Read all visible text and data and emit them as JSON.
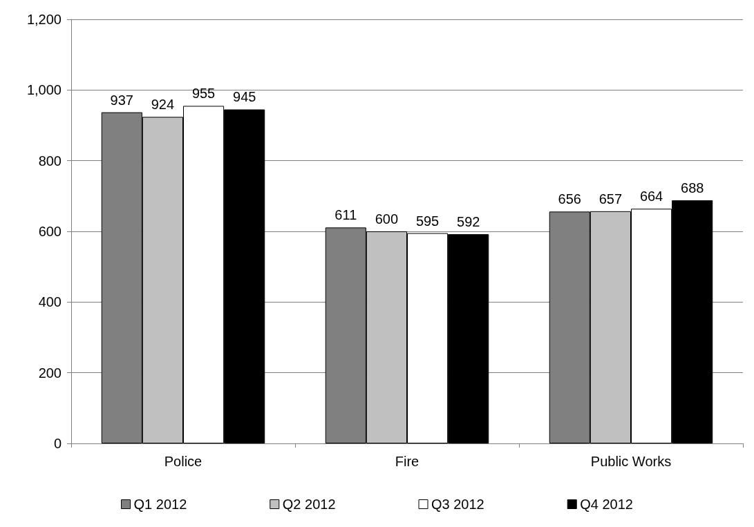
{
  "chart_data": {
    "type": "bar",
    "categories": [
      "Police",
      "Fire",
      "Public Works"
    ],
    "series": [
      {
        "name": "Q1 2012",
        "color": "#808080",
        "values": [
          937,
          611,
          656
        ]
      },
      {
        "name": "Q2 2012",
        "color": "#c0c0c0",
        "values": [
          924,
          600,
          657
        ]
      },
      {
        "name": "Q3 2012",
        "color": "#ffffff",
        "values": [
          955,
          595,
          664
        ]
      },
      {
        "name": "Q4 2012",
        "color": "#000000",
        "values": [
          945,
          592,
          688
        ]
      }
    ],
    "ylim": [
      0,
      1200
    ],
    "yticks": [
      {
        "value": 0,
        "label": "0"
      },
      {
        "value": 200,
        "label": "200"
      },
      {
        "value": 400,
        "label": "400"
      },
      {
        "value": 600,
        "label": "600"
      },
      {
        "value": 800,
        "label": "800"
      },
      {
        "value": 1000,
        "label": "1,000"
      },
      {
        "value": 1200,
        "label": "1,200"
      }
    ],
    "grid": "y",
    "legend": "bottom",
    "data_labels": true
  }
}
